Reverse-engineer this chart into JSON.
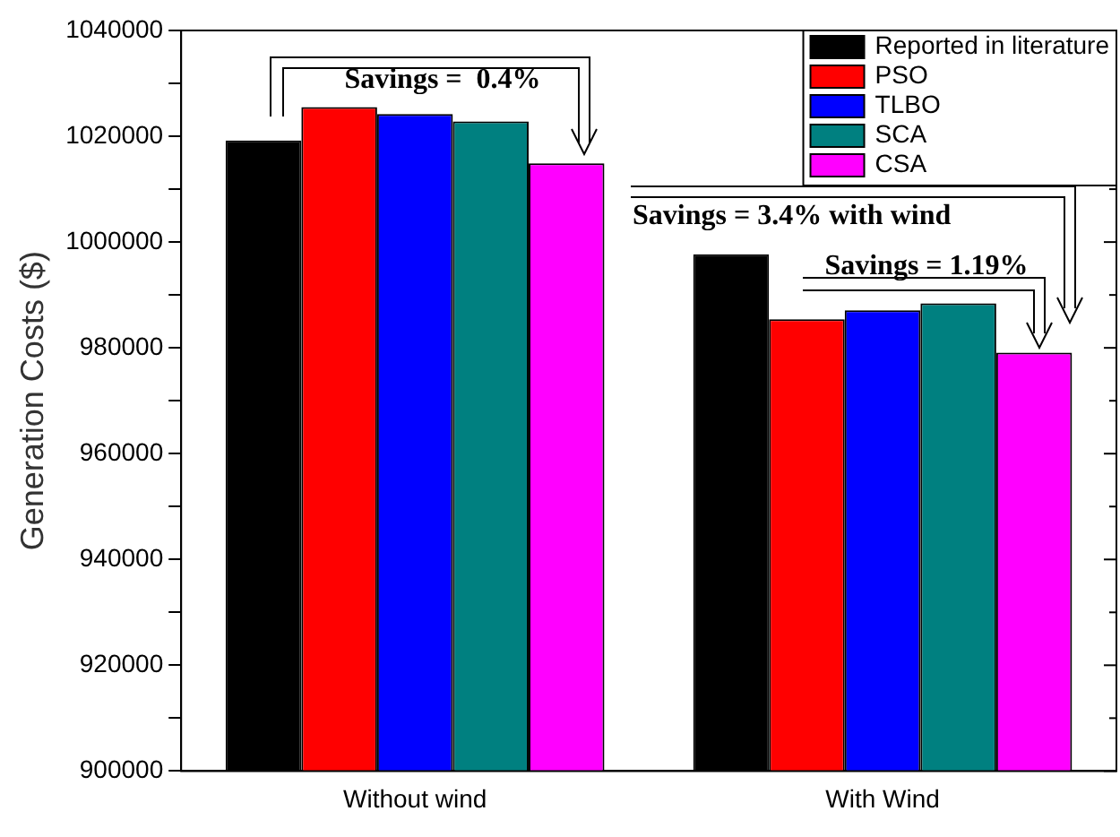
{
  "chart_data": {
    "type": "bar",
    "ylabel": "Generation Costs ($)",
    "categories": [
      "Without wind",
      "With Wind"
    ],
    "series": [
      {
        "name": "Reported in literature",
        "color": "#000000",
        "values": [
          1019200,
          997700
        ]
      },
      {
        "name": "PSO",
        "color": "#ff0000",
        "values": [
          1025500,
          985400
        ]
      },
      {
        "name": "TLBO",
        "color": "#0000ff",
        "values": [
          1024200,
          987100
        ]
      },
      {
        "name": "SCA",
        "color": "#008080",
        "values": [
          1022800,
          988400
        ]
      },
      {
        "name": "CSA",
        "color": "#ff00ff",
        "values": [
          1014900,
          979100
        ]
      }
    ],
    "ylim": [
      900000,
      1040000
    ],
    "yticks": [
      900000,
      {
        "value": 910000,
        "label": null
      },
      920000,
      {
        "value": 930000,
        "label": null
      },
      940000,
      {
        "value": 950000,
        "label": null
      },
      960000,
      {
        "value": 970000,
        "label": null
      },
      980000,
      {
        "value": 990000,
        "label": null
      },
      1000000,
      {
        "value": 1010000,
        "label": null
      },
      1020000,
      {
        "value": 1030000,
        "label": null
      },
      1040000
    ],
    "grid": false,
    "legend": "top right",
    "annotations": [
      "Savings =  0.4%",
      "Savings = 3.4% with wind",
      "Savings = 1.19%"
    ]
  }
}
